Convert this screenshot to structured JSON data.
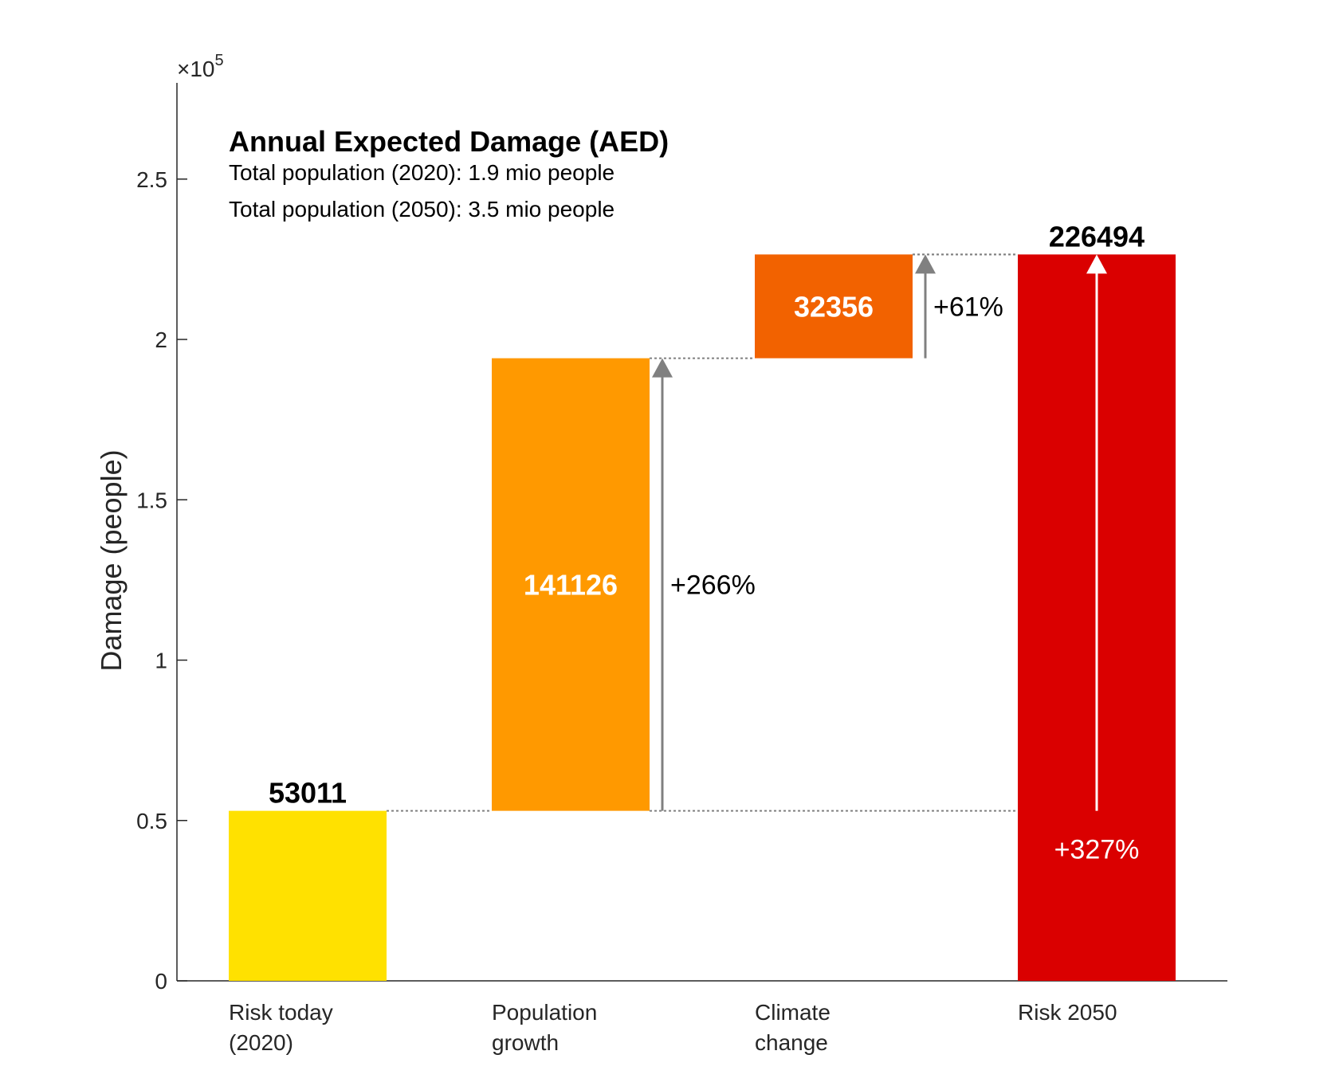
{
  "chart_data": {
    "type": "bar",
    "subtype": "waterfall",
    "title": "Annual Expected Damage (AED)",
    "subtitle_lines": [
      "Total population (2020): 1.9 mio people",
      "Total population (2050): 3.5 mio people"
    ],
    "ylabel": "Damage (people)",
    "y_exponent_label": "×10",
    "y_exponent_power": "5",
    "ylim": [
      0,
      2.8
    ],
    "yticks": [
      0,
      0.5,
      1,
      1.5,
      2,
      2.5
    ],
    "ytick_labels": [
      "0",
      "0.5",
      "1",
      "1.5",
      "2",
      "2.5"
    ],
    "categories": [
      [
        "Risk today",
        "(2020)"
      ],
      [
        "Population",
        "growth"
      ],
      [
        "Climate",
        "change"
      ],
      [
        "Risk 2050"
      ]
    ],
    "bars": [
      {
        "base": 0,
        "top": 0.53011,
        "value_label": "53011",
        "label_pos": "above",
        "color": "#FFE100"
      },
      {
        "base": 0.53011,
        "top": 1.94137,
        "value_label": "141126",
        "label_pos": "inside",
        "color": "#FF9900"
      },
      {
        "base": 1.94137,
        "top": 2.26494,
        "value_label": "32356",
        "label_pos": "inside",
        "color": "#F26200"
      },
      {
        "base": 0,
        "top": 2.26494,
        "value_label": "226494",
        "label_pos": "above",
        "color": "#DA0000"
      }
    ],
    "changes": [
      {
        "after_bar": 1,
        "from": 0.53011,
        "to": 1.94137,
        "label": "+266%",
        "color": "#808080"
      },
      {
        "after_bar": 2,
        "from": 1.94137,
        "to": 2.26494,
        "label": "+61%",
        "color": "#808080"
      },
      {
        "on_bar": 3,
        "from": 0.53011,
        "to": 2.26494,
        "label": "+327%",
        "color": "#ffffff"
      }
    ],
    "grid": false,
    "legend": "none"
  }
}
